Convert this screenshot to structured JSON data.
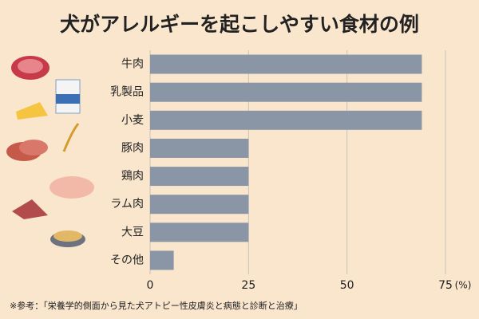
{
  "chart_data": {
    "type": "barh",
    "title": "犬がアレルギーを起こしやすい食材の例",
    "categories": [
      "牛肉",
      "乳製品",
      "小麦",
      "豚肉",
      "鶏肉",
      "ラム肉",
      "大豆",
      "その他"
    ],
    "values": [
      69,
      69,
      69,
      25,
      25,
      25,
      25,
      6
    ],
    "color": "#8a96a6",
    "xlim": [
      0,
      75
    ],
    "xticks": [
      0,
      25,
      50,
      75
    ],
    "x_unit": "(%)",
    "grid": true,
    "footnote": "※参考：「栄養学的側面から見た犬アトピー性皮膚炎と病態と診断と治療」"
  }
}
